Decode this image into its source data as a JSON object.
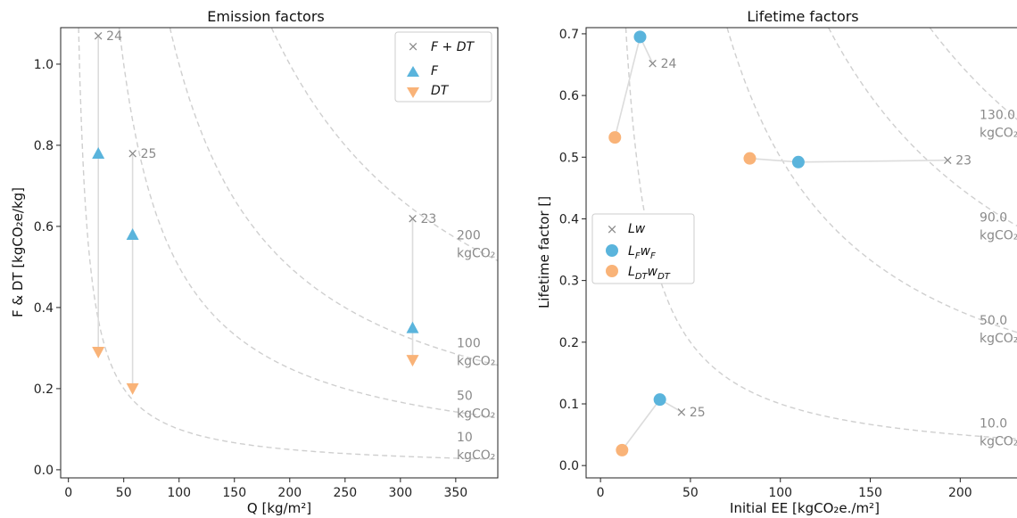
{
  "chart_data": [
    {
      "type": "scatter",
      "title": "Emission factors",
      "xlabel": "Q [kg/m²]",
      "ylabel": "F & DT [kgCO₂e/kg]",
      "xlim": [
        -7,
        388
      ],
      "ylim": [
        -0.02,
        1.09
      ],
      "xticks": [
        0,
        50,
        100,
        150,
        200,
        250,
        300,
        350
      ],
      "yticks": [
        0.0,
        0.2,
        0.4,
        0.6,
        0.8,
        1.0
      ],
      "ytick_labels": [
        "0.0",
        "0.2",
        "0.4",
        "0.6",
        "0.8",
        "1.0"
      ],
      "legend_position": "upper right",
      "series": [
        {
          "name": "F + DT",
          "marker": "x",
          "color": "#8a8a8a",
          "points": [
            {
              "x": 27,
              "y": 1.07,
              "label": "24"
            },
            {
              "x": 58,
              "y": 0.78,
              "label": "25"
            },
            {
              "x": 311,
              "y": 0.62,
              "label": "23"
            }
          ]
        },
        {
          "name": "F",
          "marker": "triangle-up",
          "color": "#5ab4dc",
          "points": [
            {
              "x": 27,
              "y": 0.78
            },
            {
              "x": 58,
              "y": 0.58
            },
            {
              "x": 311,
              "y": 0.35
            }
          ]
        },
        {
          "name": "DT",
          "marker": "triangle-down",
          "color": "#f9b378",
          "points": [
            {
              "x": 27,
              "y": 0.29
            },
            {
              "x": 58,
              "y": 0.2
            },
            {
              "x": 311,
              "y": 0.27
            }
          ]
        }
      ],
      "isolines": [
        {
          "value": 200,
          "line1": "200",
          "line2": "kgCO₂"
        },
        {
          "value": 100,
          "line1": "100",
          "line2": "kgCO₂"
        },
        {
          "value": 50,
          "line1": "50",
          "line2": "kgCO₂"
        },
        {
          "value": 10,
          "line1": "10",
          "line2": "kgCO₂"
        }
      ]
    },
    {
      "type": "scatter",
      "title": "Lifetime factors",
      "xlabel": "Initial EE [kgCO₂e./m²]",
      "ylabel": "Lifetime factor []",
      "xlim": [
        -8,
        240
      ],
      "ylim": [
        -0.02,
        0.71
      ],
      "xticks": [
        0,
        50,
        100,
        150,
        200
      ],
      "yticks": [
        0.0,
        0.1,
        0.2,
        0.3,
        0.4,
        0.5,
        0.6,
        0.7
      ],
      "ytick_labels": [
        "0.0",
        "0.1",
        "0.2",
        "0.3",
        "0.4",
        "0.5",
        "0.6",
        "0.7"
      ],
      "legend_position": "center left",
      "series": [
        {
          "name": "Lw",
          "marker": "x",
          "color": "#8a8a8a",
          "points": [
            {
              "x": 29,
              "y": 0.652,
              "label": "24"
            },
            {
              "x": 193,
              "y": 0.495,
              "label": "23"
            },
            {
              "x": 45,
              "y": 0.087,
              "label": "25"
            }
          ]
        },
        {
          "name": "L_F w_F",
          "marker": "circle",
          "color": "#5ab4dc",
          "points": [
            {
              "x": 22,
              "y": 0.695
            },
            {
              "x": 110,
              "y": 0.492
            },
            {
              "x": 33,
              "y": 0.107
            }
          ]
        },
        {
          "name": "L_DT w_DT",
          "marker": "circle",
          "color": "#f9b378",
          "points": [
            {
              "x": 8,
              "y": 0.532
            },
            {
              "x": 83,
              "y": 0.498
            },
            {
              "x": 12,
              "y": 0.025
            }
          ]
        }
      ],
      "isolines": [
        {
          "value": 130,
          "line1": "130.0",
          "line2": "kgCO₂"
        },
        {
          "value": 90,
          "line1": "90.0",
          "line2": "kgCO₂"
        },
        {
          "value": 50,
          "line1": "50.0",
          "line2": "kgCO₂"
        },
        {
          "value": 10,
          "line1": "10.0",
          "line2": "kgCO₂"
        }
      ]
    }
  ],
  "legend": {
    "left": {
      "fdt_main": "F",
      "fdt_plus": " + ",
      "fdt_tail": "DT",
      "f": "F",
      "dt": "DT"
    },
    "right": {
      "lw": "Lw",
      "lf_main": "L",
      "lf_sub1": "F",
      "lf_mid": "w",
      "lf_sub2": "F",
      "ldt_main": "L",
      "ldt_sub1": "DT",
      "ldt_mid": "w",
      "ldt_sub2": "DT"
    }
  },
  "colors": {
    "gray": "#8a8a8a",
    "blue": "#5ab4dc",
    "orange": "#f9b378",
    "isoline": "#cfcfcf",
    "connector": "#dcdcdc"
  }
}
